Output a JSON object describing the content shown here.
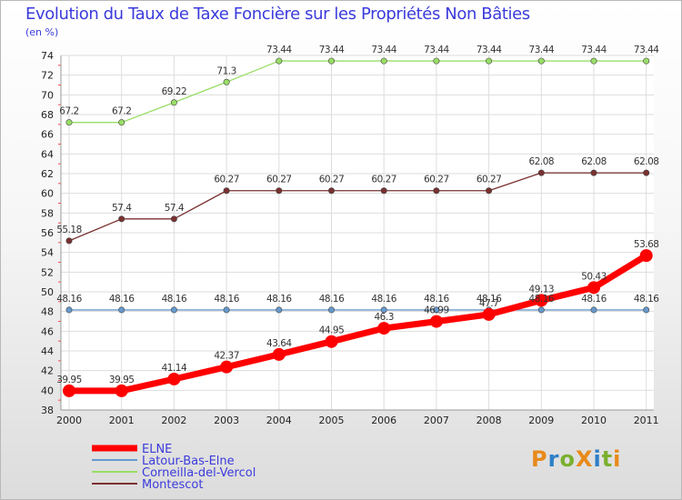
{
  "title": "Evolution du Taux de Taxe Foncière sur les Propriétés Non Bâties",
  "unit_label": "(en %)",
  "brand": "ProXiti",
  "chart_data": {
    "type": "line",
    "title": "Evolution du Taux de Taxe Foncière sur les Propriétés Non Bâties",
    "ylabel": "(en %)",
    "xlabel": "",
    "x": [
      "2000",
      "2001",
      "2002",
      "2003",
      "2004",
      "2005",
      "2006",
      "2007",
      "2008",
      "2009",
      "2010",
      "2011"
    ],
    "ylim": [
      38,
      74
    ],
    "yticks": [
      38,
      40,
      42,
      44,
      46,
      48,
      50,
      52,
      54,
      56,
      58,
      60,
      62,
      64,
      66,
      68,
      70,
      72,
      74
    ],
    "grid": true,
    "legend_position": "bottom-left",
    "series": [
      {
        "name": "ELNE",
        "color": "#ff0000",
        "values": [
          39.95,
          39.95,
          41.14,
          42.37,
          43.64,
          44.95,
          46.3,
          46.99,
          47.7,
          49.13,
          50.43,
          53.68
        ],
        "labels": [
          "39.95",
          "39.95",
          "41.14",
          "42.37",
          "43.64",
          "44.95",
          "46.3",
          "46.99",
          "47.7",
          "49.13",
          "50.43",
          "53.68"
        ]
      },
      {
        "name": "Latour-Bas-Elne",
        "color": "#6699cc",
        "values": [
          48.16,
          48.16,
          48.16,
          48.16,
          48.16,
          48.16,
          48.16,
          48.16,
          48.16,
          48.16,
          48.16,
          48.16
        ],
        "labels": [
          "48.16",
          "48.16",
          "48.16",
          "48.16",
          "48.16",
          "48.16",
          "48.16",
          "48.16",
          "48.16",
          "48.16",
          "48.16",
          "48.16"
        ]
      },
      {
        "name": "Corneilla-del-Vercol",
        "color": "#99dd66",
        "values": [
          67.2,
          67.2,
          69.22,
          71.3,
          73.44,
          73.44,
          73.44,
          73.44,
          73.44,
          73.44,
          73.44,
          73.44
        ],
        "labels": [
          "67.2",
          "67.2",
          "69.22",
          "71.3",
          "73.44",
          "73.44",
          "73.44",
          "73.44",
          "73.44",
          "73.44",
          "73.44",
          "73.44"
        ]
      },
      {
        "name": "Montescot",
        "color": "#7a3030",
        "values": [
          55.18,
          57.4,
          57.4,
          60.27,
          60.27,
          60.27,
          60.27,
          60.27,
          60.27,
          62.08,
          62.08,
          62.08
        ],
        "labels": [
          "55.18",
          "57.4",
          "57.4",
          "60.27",
          "60.27",
          "60.27",
          "60.27",
          "60.27",
          "60.27",
          "62.08",
          "62.08",
          "62.08"
        ]
      }
    ]
  }
}
